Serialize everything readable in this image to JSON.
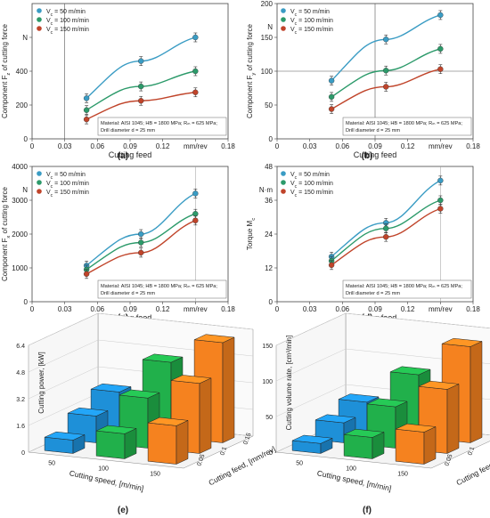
{
  "chart_data": [
    {
      "panel_label": "(a)",
      "type": "line",
      "xlabel": "Cutting feed",
      "ylabel": "Component F",
      "ylabel_sub": "z",
      "ylabel_rest": " of cutting force",
      "x_ticks": [
        "0",
        "0.03",
        "0.06",
        "0.09",
        "0.12",
        "0.15",
        "0.18"
      ],
      "x_unit": "mm/rev",
      "y_ticks": [
        "0",
        "200",
        "400",
        "600"
      ],
      "y_unit": "N",
      "xlim": [
        0,
        0.18
      ],
      "ylim": [
        0,
        800
      ],
      "x": [
        0.05,
        0.1,
        0.15
      ],
      "series": [
        {
          "name_main": "V",
          "name_sub": "c",
          "name_rest": " = 50 m/min",
          "color": "#3a9cc4",
          "values": [
            240,
            460,
            600
          ]
        },
        {
          "name_main": "V",
          "name_sub": "c",
          "name_rest": " = 100 m/min",
          "color": "#2c9a6a",
          "values": [
            170,
            310,
            400
          ]
        },
        {
          "name_main": "V",
          "name_sub": "c",
          "name_rest": " = 150 m/min",
          "color": "#c0442a",
          "values": [
            115,
            225,
            275
          ]
        }
      ],
      "annotation": [
        "Material: AISI 1045; HB = 1800 MPa; Rₘ = 625 MPa;",
        "Drill diameter d = 25 mm"
      ]
    },
    {
      "panel_label": "(b)",
      "type": "line",
      "xlabel": "Cutting feed",
      "ylabel": "Component F",
      "ylabel_sub": "y",
      "ylabel_rest": " of cutting force",
      "x_ticks": [
        "0",
        "0.03",
        "0.06",
        "0.09",
        "0.12",
        "0.15",
        "0.18"
      ],
      "x_unit": "mm/rev",
      "y_ticks": [
        "0",
        "50",
        "100",
        "150",
        "200"
      ],
      "y_unit": "N",
      "xlim": [
        0,
        0.18
      ],
      "ylim": [
        0,
        200
      ],
      "x": [
        0.05,
        0.1,
        0.15
      ],
      "series": [
        {
          "name_main": "V",
          "name_sub": "c",
          "name_rest": " = 50 m/min",
          "color": "#3a9cc4",
          "values": [
            86,
            147,
            183
          ]
        },
        {
          "name_main": "V",
          "name_sub": "c",
          "name_rest": " = 100 m/min",
          "color": "#2c9a6a",
          "values": [
            62,
            101,
            133
          ]
        },
        {
          "name_main": "V",
          "name_sub": "c",
          "name_rest": " = 150 m/min",
          "color": "#c0442a",
          "values": [
            44,
            77,
            103
          ]
        }
      ],
      "annotation": [
        "Material: AISI 1045; HB = 1800 MPa; Rₘ = 625 MPa;",
        "Drill diameter d = 25 mm"
      ]
    },
    {
      "panel_label": "(c)",
      "type": "line",
      "xlabel": "Cutting feed",
      "ylabel": "Component F",
      "ylabel_sub": "x",
      "ylabel_rest": " of cutting force",
      "x_ticks": [
        "0",
        "0.03",
        "0.06",
        "0.09",
        "0.12",
        "0.15",
        "0.18"
      ],
      "x_unit": "mm/rev",
      "y_ticks": [
        "0",
        "1000",
        "2000",
        "3000",
        "4000"
      ],
      "y_unit": "N",
      "xlim": [
        0,
        0.18
      ],
      "ylim": [
        0,
        4000
      ],
      "x": [
        0.05,
        0.1,
        0.15
      ],
      "series": [
        {
          "name_main": "V",
          "name_sub": "c",
          "name_rest": " = 50 m/min",
          "color": "#3a9cc4",
          "values": [
            1070,
            2000,
            3200
          ]
        },
        {
          "name_main": "V",
          "name_sub": "c",
          "name_rest": " = 100 m/min",
          "color": "#2c9a6a",
          "values": [
            950,
            1750,
            2600
          ]
        },
        {
          "name_main": "V",
          "name_sub": "c",
          "name_rest": " = 150 m/min",
          "color": "#c0442a",
          "values": [
            820,
            1450,
            2400
          ]
        }
      ],
      "annotation": [
        "Material: AISI 1045; HB = 1800 MPa; Rₘ = 625 MPa;",
        "Drill diameter d = 25 mm"
      ]
    },
    {
      "panel_label": "(d)",
      "type": "line",
      "xlabel": "Cutting feed",
      "ylabel": "Torque M",
      "ylabel_sub": "c",
      "ylabel_rest": "",
      "x_ticks": [
        "0",
        "0.03",
        "0.06",
        "0.09",
        "0.12",
        "0.15",
        "0.18"
      ],
      "x_unit": "mm/rev",
      "y_ticks": [
        "0",
        "12",
        "24",
        "36",
        "48"
      ],
      "y_unit": "N·m",
      "xlim": [
        0,
        0.18
      ],
      "ylim": [
        0,
        48
      ],
      "x": [
        0.05,
        0.1,
        0.15
      ],
      "series": [
        {
          "name_main": "V",
          "name_sub": "c",
          "name_rest": " = 50 m/min",
          "color": "#3a9cc4",
          "values": [
            16,
            28,
            43
          ]
        },
        {
          "name_main": "V",
          "name_sub": "c",
          "name_rest": " = 100 m/min",
          "color": "#2c9a6a",
          "values": [
            14.5,
            26,
            36
          ]
        },
        {
          "name_main": "V",
          "name_sub": "c",
          "name_rest": " = 150 m/min",
          "color": "#c0442a",
          "values": [
            13,
            23,
            33
          ]
        }
      ],
      "annotation": [
        "Material: AISI 1045; HB = 1800 MPa; Rₘ = 625 MPa;",
        "Drill diameter d = 25 mm"
      ]
    },
    {
      "panel_label": "(e)",
      "type": "bar3d",
      "zlabel": "Cutting power, [kW]",
      "xlabel": "Cutting speed, [m/min]",
      "ylabel": "Cutting feed, [mm/rev]",
      "z_ticks": [
        "0",
        "1.6",
        "3.2",
        "4.8",
        "6.4"
      ],
      "zlim": [
        0,
        6.4
      ],
      "speed_ticks": [
        "50",
        "100",
        "150"
      ],
      "feed_ticks": [
        "0.05",
        "0.1",
        "0.15"
      ],
      "speeds": [
        50,
        100,
        150
      ],
      "feeds": [
        0.05,
        0.1,
        0.15
      ],
      "colors": [
        "#1e90d8",
        "#21b04b",
        "#f5821f"
      ],
      "values": [
        [
          0.8,
          1.6,
          2.4
        ],
        [
          1.5,
          3.0,
          4.5
        ],
        [
          2.3,
          4.2,
          6.0
        ]
      ]
    },
    {
      "panel_label": "(f)",
      "type": "bar3d",
      "zlabel": "Cutting volume rate, [cm³/min]",
      "xlabel": "Cutting speed, [m/min]",
      "ylabel": "Cutting feed, [mm/rev]",
      "z_ticks": [
        "0",
        "50",
        "100",
        "150"
      ],
      "zlim": [
        0,
        150
      ],
      "speed_ticks": [
        "50",
        "100",
        "150"
      ],
      "feed_ticks": [
        "0.05",
        "0.1",
        "0.15"
      ],
      "speeds": [
        50,
        100,
        150
      ],
      "feeds": [
        0.05,
        0.1,
        0.15
      ],
      "colors": [
        "#1e90d8",
        "#21b04b",
        "#f5821f"
      ],
      "values": [
        [
          14,
          28,
          42
        ],
        [
          30,
          58,
          88
        ],
        [
          45,
          90,
          135
        ]
      ]
    }
  ]
}
